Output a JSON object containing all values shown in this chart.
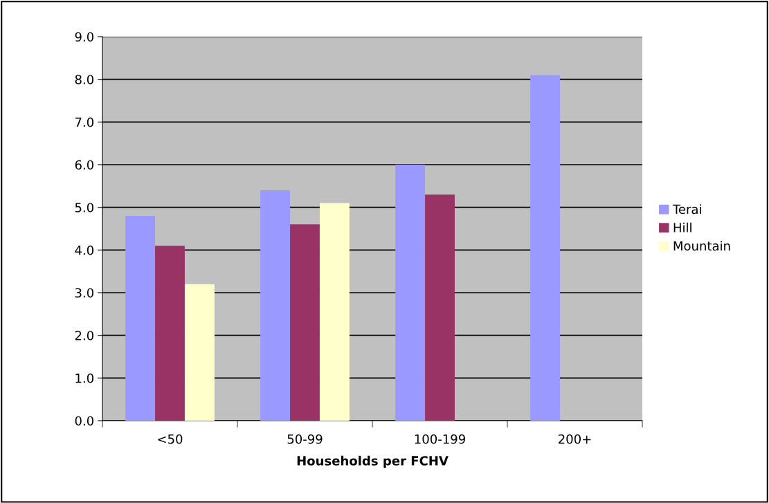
{
  "chart_data": {
    "type": "bar",
    "xlabel": "Households per FCHV",
    "categories": [
      "<50",
      "50-99",
      "100-199",
      "200+"
    ],
    "series": [
      {
        "name": "Terai",
        "color": "#9999ff",
        "values": [
          4.8,
          5.4,
          6.0,
          8.1
        ]
      },
      {
        "name": "Hill",
        "color": "#993366",
        "values": [
          4.1,
          4.6,
          5.3,
          null
        ]
      },
      {
        "name": "Mountain",
        "color": "#ffffcc",
        "values": [
          3.2,
          5.1,
          null,
          null
        ]
      }
    ],
    "ylim": [
      0,
      9
    ],
    "yticks": [
      {
        "value": 0,
        "label": "0.0"
      },
      {
        "value": 1,
        "label": "1.0"
      },
      {
        "value": 2,
        "label": "2.0"
      },
      {
        "value": 3,
        "label": "3.0"
      },
      {
        "value": 4,
        "label": "4.0"
      },
      {
        "value": 5,
        "label": "5.0"
      },
      {
        "value": 6,
        "label": "6.0"
      },
      {
        "value": 7,
        "label": "7.0"
      },
      {
        "value": 8,
        "label": "8.0"
      },
      {
        "value": 9,
        "label": "9.0"
      }
    ],
    "grid": "y",
    "legend": "right"
  }
}
